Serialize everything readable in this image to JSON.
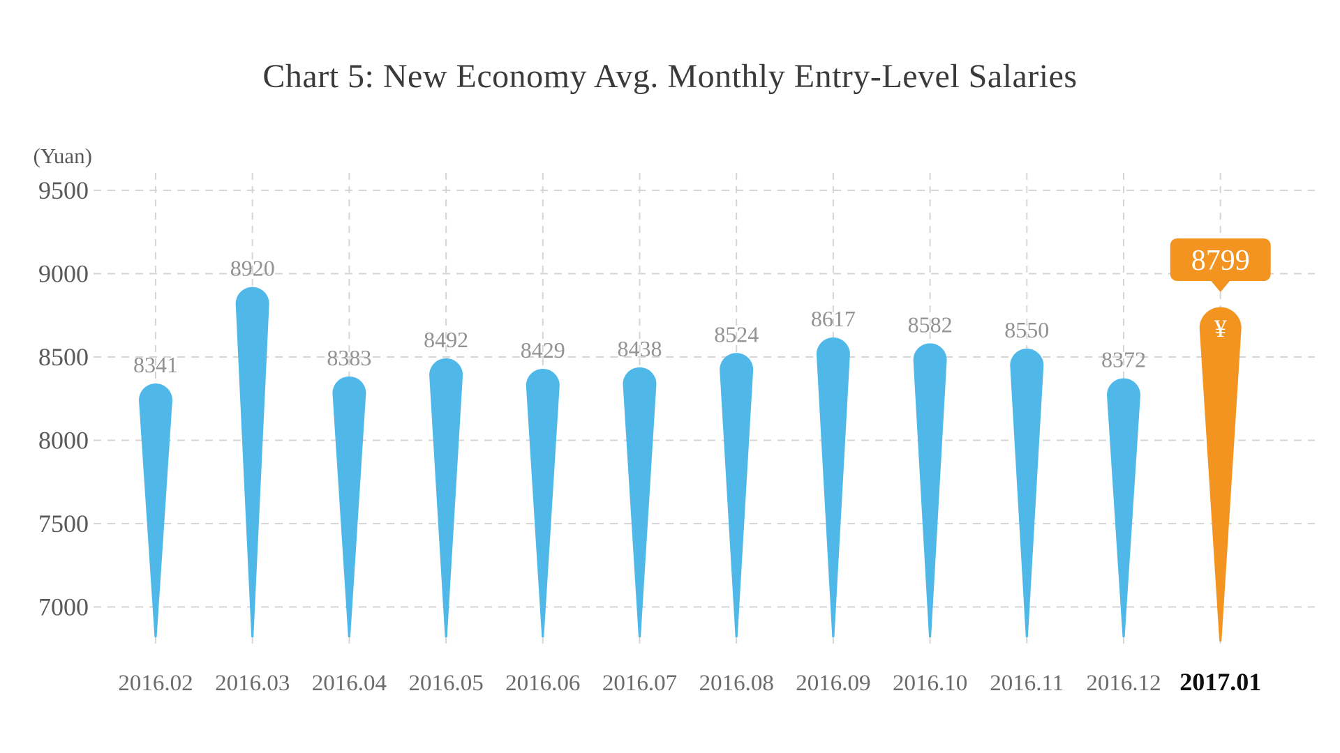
{
  "title": "Chart 5: New Economy Avg. Monthly Entry-Level Salaries",
  "chart_data": {
    "type": "bar",
    "title": "Chart 5: New Economy Avg. Monthly Entry-Level Salaries",
    "unit": "(Yuan)",
    "xlabel": "",
    "ylabel": "(Yuan)",
    "categories": [
      "2016.02",
      "2016.03",
      "2016.04",
      "2016.05",
      "2016.06",
      "2016.07",
      "2016.08",
      "2016.09",
      "2016.10",
      "2016.11",
      "2016.12",
      "2017.01"
    ],
    "values": [
      8341,
      8920,
      8383,
      8492,
      8429,
      8438,
      8524,
      8617,
      8582,
      8550,
      8372,
      8799
    ],
    "y_ticks": [
      9500,
      9000,
      8500,
      8000,
      7500,
      7000
    ],
    "ylim": [
      7000,
      9500
    ],
    "grid": true,
    "legend": false,
    "highlight": {
      "index": 11,
      "category": "2017.01",
      "value": 8799,
      "callout_label": "8799",
      "currency_symbol": "¥"
    },
    "colors": {
      "bar": "#4FB8E8",
      "highlight": "#F39421",
      "grid_line": "#D5D5D5",
      "tick_text": "#595959",
      "value_label": "#929292",
      "x_label": "#6B6B6B",
      "x_label_highlight": "#0D0D0D",
      "title_text": "#3A3A3A",
      "callout_text": "#FFFFFF"
    }
  }
}
